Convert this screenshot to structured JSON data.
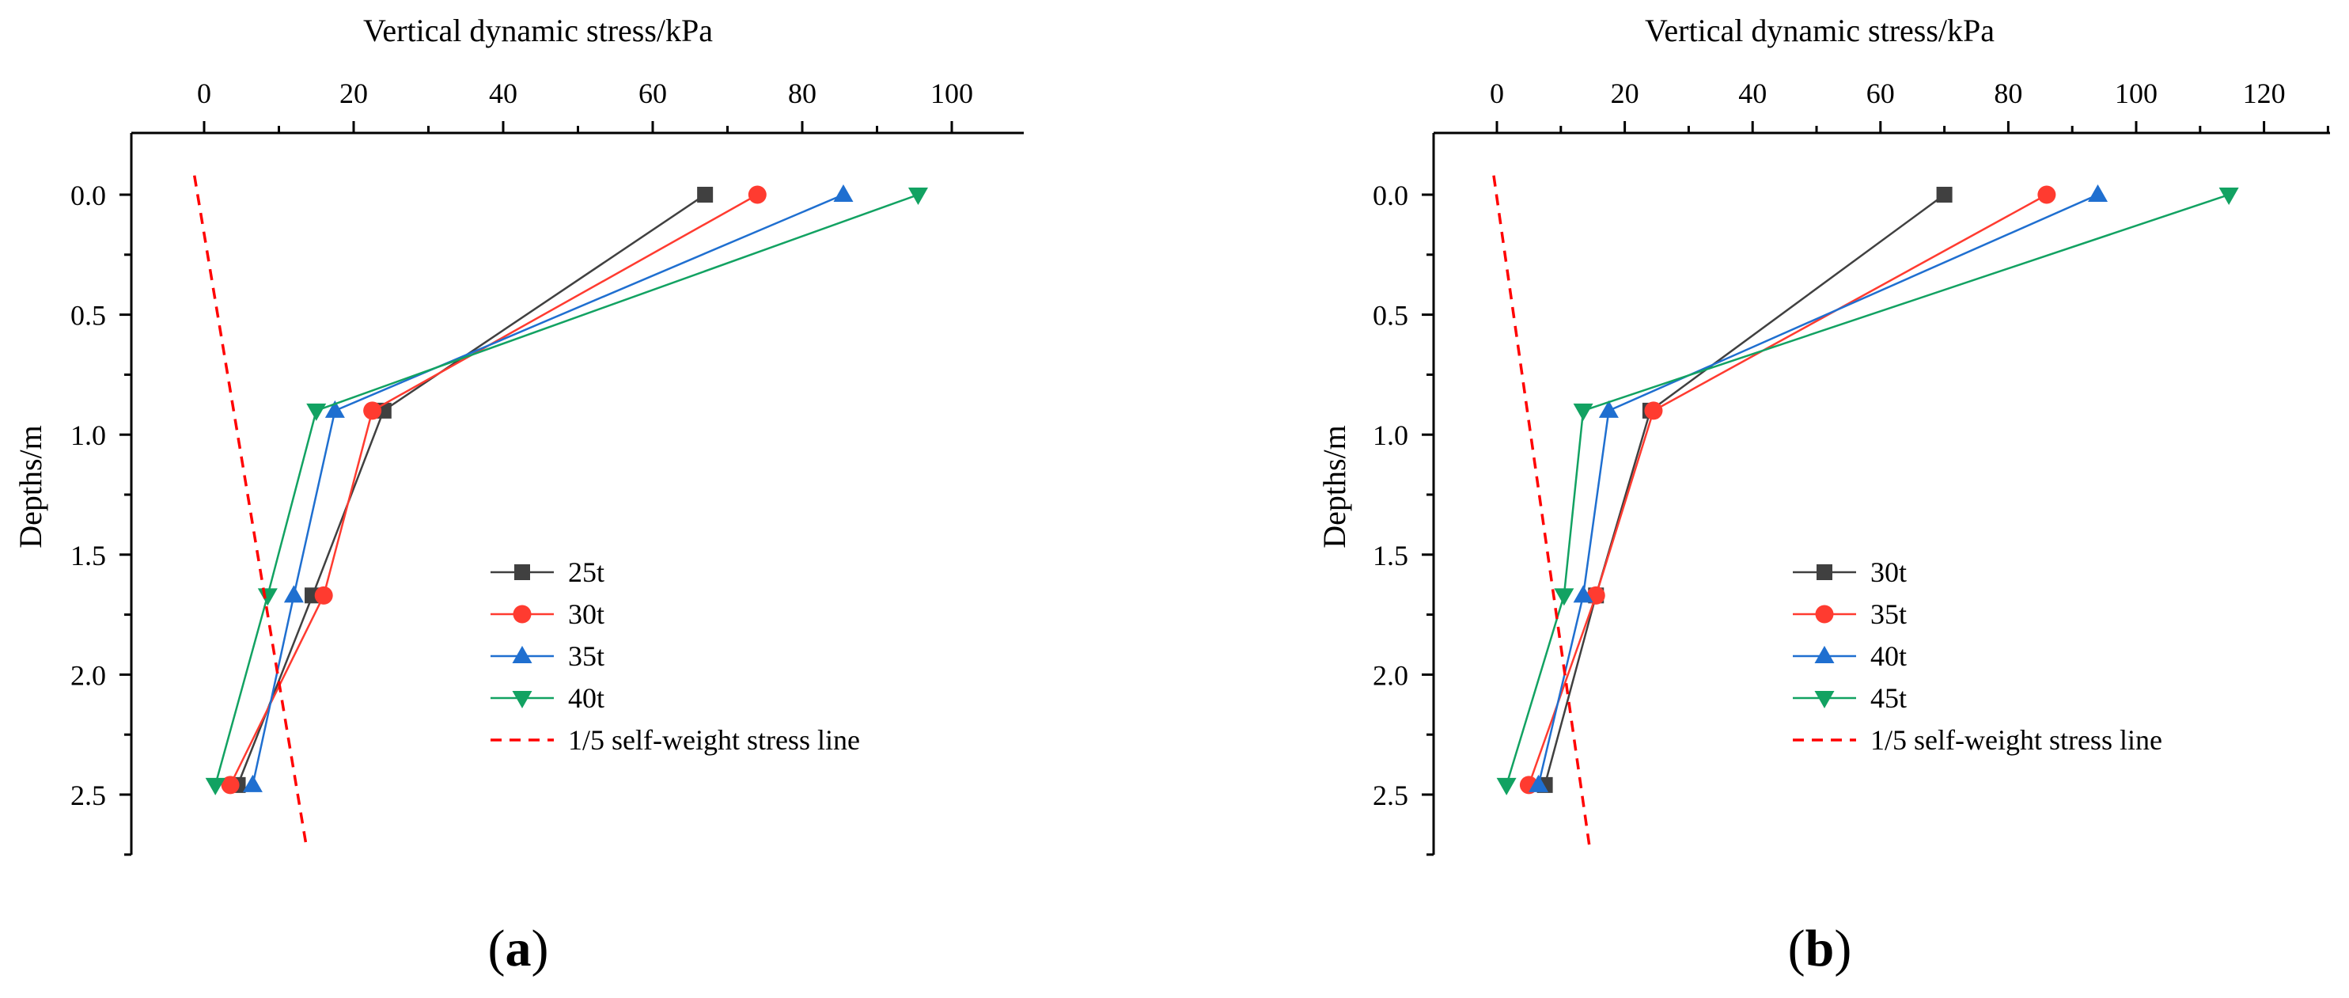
{
  "chart_data": [
    {
      "type": "line",
      "panel_label": "a",
      "title": "",
      "xlabel": "Vertical dynamic stress/kPa",
      "ylabel": "Depths/m",
      "x_axis_position": "top",
      "y_axis_inverted": true,
      "xlim": [
        -10,
        110
      ],
      "ylim": [
        -0.25,
        2.75
      ],
      "xticks": [
        0,
        20,
        40,
        60,
        80,
        100
      ],
      "yticks": [
        0.0,
        0.5,
        1.0,
        1.5,
        2.0,
        2.5
      ],
      "ytick_labels": [
        "0.0",
        "0.5",
        "1.0",
        "1.5",
        "2.0",
        "2.5"
      ],
      "legend_position": "lower-right",
      "series": [
        {
          "name": "25t",
          "marker": "square",
          "color": "#404040",
          "x": [
            67,
            24,
            14.5,
            4.5
          ],
          "y": [
            0.0,
            0.9,
            1.67,
            2.46
          ]
        },
        {
          "name": "30t",
          "marker": "circle",
          "color": "#ff3b30",
          "x": [
            74,
            22.5,
            16,
            3.5
          ],
          "y": [
            0.0,
            0.9,
            1.67,
            2.46
          ]
        },
        {
          "name": "35t",
          "marker": "triangle-up",
          "color": "#1f6fd0",
          "x": [
            85.5,
            17.5,
            12,
            6.5
          ],
          "y": [
            0.0,
            0.9,
            1.67,
            2.46
          ]
        },
        {
          "name": "40t",
          "marker": "triangle-down",
          "color": "#12a262",
          "x": [
            95.5,
            15,
            8.5,
            1.5
          ],
          "y": [
            0.0,
            0.9,
            1.67,
            2.46
          ]
        },
        {
          "name": "1/5 self-weight stress line",
          "style": "dashed",
          "color": "#ff0000",
          "x": [
            -1.3,
            13.7
          ],
          "y": [
            -0.08,
            2.72
          ]
        }
      ]
    },
    {
      "type": "line",
      "panel_label": "b",
      "title": "",
      "xlabel": "Vertical dynamic stress/kPa",
      "ylabel": "Depths/m",
      "x_axis_position": "top",
      "y_axis_inverted": true,
      "xlim": [
        -10,
        130
      ],
      "ylim": [
        -0.25,
        2.75
      ],
      "xticks": [
        0,
        20,
        40,
        60,
        80,
        100,
        120
      ],
      "yticks": [
        0.0,
        0.5,
        1.0,
        1.5,
        2.0,
        2.5
      ],
      "ytick_labels": [
        "0.0",
        "0.5",
        "1.0",
        "1.5",
        "2.0",
        "2.5"
      ],
      "legend_position": "lower-right",
      "series": [
        {
          "name": "30t",
          "marker": "square",
          "color": "#404040",
          "x": [
            70,
            24,
            15.5,
            7.5
          ],
          "y": [
            0.0,
            0.9,
            1.67,
            2.46
          ]
        },
        {
          "name": "35t",
          "marker": "circle",
          "color": "#ff3b30",
          "x": [
            86,
            24.5,
            15.5,
            5
          ],
          "y": [
            0.0,
            0.9,
            1.67,
            2.46
          ]
        },
        {
          "name": "40t",
          "marker": "triangle-up",
          "color": "#1f6fd0",
          "x": [
            94,
            17.5,
            13.5,
            6.5
          ],
          "y": [
            0.0,
            0.9,
            1.67,
            2.46
          ]
        },
        {
          "name": "45t",
          "marker": "triangle-down",
          "color": "#12a262",
          "x": [
            114.5,
            13.5,
            10.5,
            1.5
          ],
          "y": [
            0.0,
            0.9,
            1.67,
            2.46
          ]
        },
        {
          "name": "1/5 self-weight stress line",
          "style": "dashed",
          "color": "#ff0000",
          "x": [
            -0.5,
            14.5
          ],
          "y": [
            -0.08,
            2.72
          ]
        }
      ]
    }
  ]
}
